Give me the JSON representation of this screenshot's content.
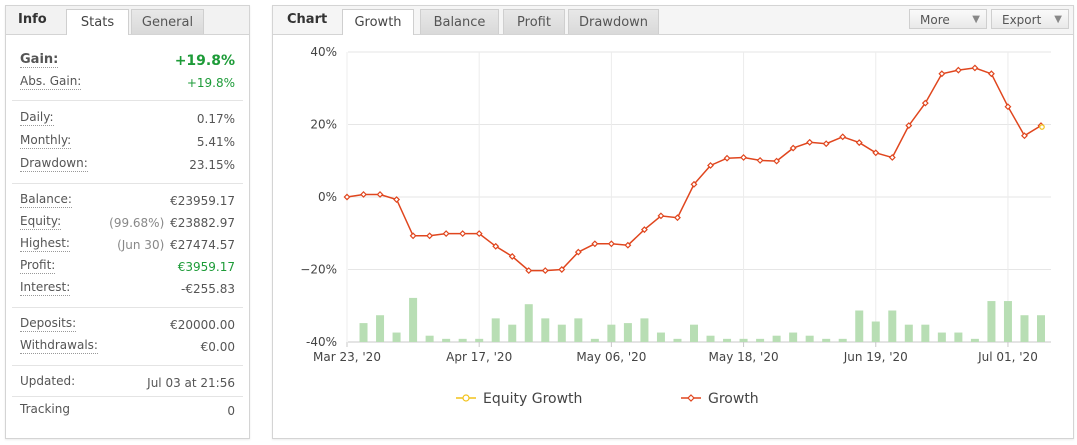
{
  "left_panel": {
    "tabs": [
      {
        "label": "Info"
      },
      {
        "label": "Stats"
      },
      {
        "label": "General"
      }
    ],
    "gain": {
      "label": "Gain:",
      "value": "+19.8%"
    },
    "abs_gain": {
      "label": "Abs. Gain:",
      "value": "+19.8%"
    },
    "daily": {
      "label": "Daily:",
      "value": "0.17%"
    },
    "monthly": {
      "label": "Monthly:",
      "value": "5.41%"
    },
    "drawdown": {
      "label": "Drawdown:",
      "value": "23.15%"
    },
    "balance": {
      "label": "Balance:",
      "value": "€23959.17"
    },
    "equity": {
      "label": "Equity:",
      "sub": "(99.68%)",
      "value": "€23882.97"
    },
    "highest": {
      "label": "Highest:",
      "sub": "(Jun 30)",
      "value": "€27474.57"
    },
    "profit": {
      "label": "Profit:",
      "value": "€3959.17"
    },
    "interest": {
      "label": "Interest:",
      "value": "-€255.83"
    },
    "deposits": {
      "label": "Deposits:",
      "value": "€20000.00"
    },
    "withdrawals": {
      "label": "Withdrawals:",
      "value": "€0.00"
    },
    "updated": {
      "label": "Updated:",
      "value": "Jul 03 at 21:56"
    },
    "tracking": {
      "label": "Tracking",
      "value": "0"
    }
  },
  "chart_panel": {
    "title": "Chart",
    "tabs": [
      {
        "label": "Growth"
      },
      {
        "label": "Balance"
      },
      {
        "label": "Profit"
      },
      {
        "label": "Drawdown"
      }
    ],
    "more_label": "More",
    "export_label": "Export",
    "arrow_glyph": "▼"
  },
  "colors": {
    "growth_line": "#e0461e",
    "equity_line": "#f2c21a",
    "bars": "#b8deb4",
    "gain_green": "#1d9b38"
  },
  "chart_data": {
    "type": "line",
    "ylim": [
      -40,
      40
    ],
    "yticks": [
      -40,
      -20,
      0,
      20,
      40
    ],
    "ytick_labels": [
      "-40%",
      "−20%",
      "0%",
      "20%",
      "40%"
    ],
    "xtick_labels": [
      "Mar 23, '20",
      "Apr 17, '20",
      "May 06, '20",
      "May 18, '20",
      "Jun 19, '20",
      "Jul 01, '20"
    ],
    "xtick_index": [
      0,
      8,
      16,
      24,
      32,
      40
    ],
    "legend": [
      {
        "name": "Equity Growth"
      },
      {
        "name": "Growth"
      }
    ],
    "growth": [
      0,
      0.7,
      0.7,
      -0.7,
      -10.7,
      -10.7,
      -10.1,
      -10.1,
      -10.1,
      -13.6,
      -16.4,
      -20.3,
      -20.3,
      -20.0,
      -15.2,
      -12.9,
      -12.9,
      -13.3,
      -9.0,
      -5.2,
      -5.7,
      3.5,
      8.7,
      10.7,
      10.9,
      10.1,
      9.9,
      13.5,
      15.1,
      14.7,
      16.6,
      15.0,
      12.2,
      10.9,
      19.7,
      25.9,
      34.0,
      35.0,
      35.6,
      34.0,
      24.9,
      16.9,
      19.7
    ],
    "equity_end": 19.3,
    "bars": [
      0,
      6,
      8.5,
      3,
      14,
      2,
      1,
      1,
      1,
      7.5,
      5.5,
      12,
      7.5,
      5.5,
      7.5,
      1,
      5.5,
      6,
      7.5,
      3,
      1,
      5.5,
      2,
      1,
      1,
      1,
      2,
      3,
      2,
      1,
      1,
      10,
      6.5,
      10,
      5.5,
      5.5,
      3,
      3,
      1,
      13,
      13,
      8.5,
      8.5
    ]
  }
}
